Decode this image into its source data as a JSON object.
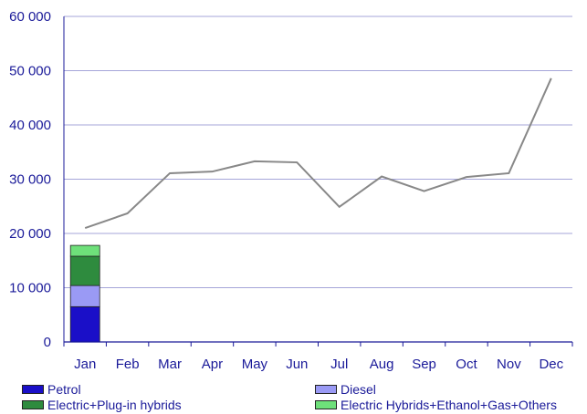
{
  "chart_data": {
    "type": "bar",
    "categories": [
      "Jan",
      "Feb",
      "Mar",
      "Apr",
      "May",
      "Jun",
      "Jul",
      "Aug",
      "Sep",
      "Oct",
      "Nov",
      "Dec"
    ],
    "y_ticks": [
      "0",
      "10 000",
      "20 000",
      "30 000",
      "40 000",
      "50 000",
      "60 000"
    ],
    "ylim": [
      0,
      60000
    ],
    "grid": true,
    "legend_position": "bottom",
    "stacked_series": [
      {
        "name": "Petrol",
        "color": "#1a0fc8",
        "values": [
          6500,
          null,
          null,
          null,
          null,
          null,
          null,
          null,
          null,
          null,
          null,
          null
        ]
      },
      {
        "name": "Diesel",
        "color": "#9a9af5",
        "values": [
          3900,
          null,
          null,
          null,
          null,
          null,
          null,
          null,
          null,
          null,
          null,
          null
        ]
      },
      {
        "name": "Electric+Plug-in hybrids",
        "color": "#2e8b3e",
        "values": [
          5400,
          null,
          null,
          null,
          null,
          null,
          null,
          null,
          null,
          null,
          null,
          null
        ]
      },
      {
        "name": "Electric Hybrids+Ethanol+Gas+Others",
        "color": "#6ee07a",
        "values": [
          2000,
          null,
          null,
          null,
          null,
          null,
          null,
          null,
          null,
          null,
          null,
          null
        ]
      }
    ],
    "line_series": {
      "color": "#888888",
      "values": [
        21000,
        23700,
        31100,
        31400,
        33300,
        33100,
        24900,
        30500,
        27800,
        30400,
        31100,
        48600
      ]
    }
  }
}
